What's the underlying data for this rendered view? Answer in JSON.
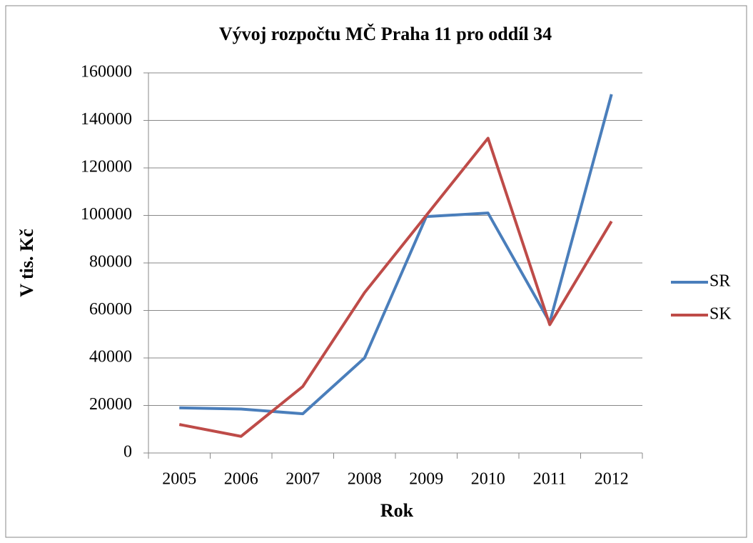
{
  "chart_data": {
    "type": "line",
    "title": "Vývoj rozpočtu MČ Praha 11 pro oddíl 34",
    "x_label": "Rok",
    "y_label": "V tis. Kč",
    "categories": [
      "2005",
      "2006",
      "2007",
      "2008",
      "2009",
      "2010",
      "2011",
      "2012"
    ],
    "series": [
      {
        "name": "SR",
        "color": "#4a7ebb",
        "values": [
          19000,
          18500,
          16500,
          40000,
          99500,
          101000,
          55000,
          151000
        ]
      },
      {
        "name": "SK",
        "color": "#be4b48",
        "values": [
          12000,
          7000,
          28000,
          67500,
          100000,
          132500,
          54000,
          97500
        ]
      }
    ],
    "ylim": [
      0,
      160000
    ],
    "yticks": [
      0,
      20000,
      40000,
      60000,
      80000,
      100000,
      120000,
      140000,
      160000
    ],
    "grid": true,
    "legend": "right"
  }
}
